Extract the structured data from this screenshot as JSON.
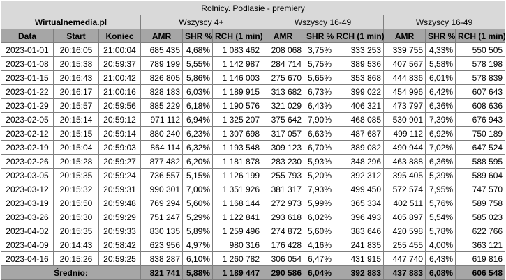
{
  "title": "Rolnicy. Podlasie - premiery",
  "source": "Wirtualnemedia.pl",
  "groups": [
    "Wszyscy 4+",
    "Wszyscy 16-49",
    "Wszyscy 16-49"
  ],
  "headers": [
    "Data",
    "Start",
    "Koniec",
    "AMR",
    "SHR %",
    "RCH (1 min)",
    "AMR",
    "SHR %",
    "RCH (1 min)",
    "AMR",
    "SHR %",
    "RCH (1 min)"
  ],
  "rows": [
    [
      "2023-01-01",
      "20:16:05",
      "21:00:04",
      "685 435",
      "4,68%",
      "1 083 462",
      "208 068",
      "3,75%",
      "333 253",
      "339 755",
      "4,33%",
      "550 505"
    ],
    [
      "2023-01-08",
      "20:15:38",
      "20:59:37",
      "789 199",
      "5,55%",
      "1 142 987",
      "284 714",
      "5,75%",
      "389 536",
      "407 567",
      "5,58%",
      "578 198"
    ],
    [
      "2023-01-15",
      "20:16:43",
      "21:00:42",
      "826 805",
      "5,86%",
      "1 146 003",
      "275 670",
      "5,65%",
      "353 868",
      "444 836",
      "6,01%",
      "578 839"
    ],
    [
      "2023-01-22",
      "20:16:17",
      "21:00:16",
      "828 183",
      "6,03%",
      "1 189 915",
      "313 682",
      "6,73%",
      "399 022",
      "454 996",
      "6,42%",
      "607 643"
    ],
    [
      "2023-01-29",
      "20:15:57",
      "20:59:56",
      "885 229",
      "6,18%",
      "1 190 576",
      "321 029",
      "6,43%",
      "406 321",
      "473 797",
      "6,36%",
      "608 636"
    ],
    [
      "2023-02-05",
      "20:15:14",
      "20:59:12",
      "971 112",
      "6,94%",
      "1 325 207",
      "375 642",
      "7,90%",
      "468 085",
      "530 901",
      "7,39%",
      "676 943"
    ],
    [
      "2023-02-12",
      "20:15:15",
      "20:59:14",
      "880 240",
      "6,23%",
      "1 307 698",
      "317 057",
      "6,63%",
      "487 687",
      "499 112",
      "6,92%",
      "750 189"
    ],
    [
      "2023-02-19",
      "20:15:04",
      "20:59:03",
      "864 114",
      "6,32%",
      "1 193 548",
      "309 123",
      "6,70%",
      "389 082",
      "490 944",
      "7,02%",
      "647 524"
    ],
    [
      "2023-02-26",
      "20:15:28",
      "20:59:27",
      "877 482",
      "6,20%",
      "1 181 878",
      "283 230",
      "5,93%",
      "348 296",
      "463 888",
      "6,36%",
      "588 595"
    ],
    [
      "2023-03-05",
      "20:15:35",
      "20:59:24",
      "736 557",
      "5,15%",
      "1 126 199",
      "255 793",
      "5,20%",
      "392 312",
      "395 405",
      "5,39%",
      "589 604"
    ],
    [
      "2023-03-12",
      "20:15:32",
      "20:59:31",
      "990 301",
      "7,00%",
      "1 351 926",
      "381 317",
      "7,93%",
      "499 450",
      "572 574",
      "7,95%",
      "747 570"
    ],
    [
      "2023-03-19",
      "20:15:50",
      "20:59:48",
      "769 294",
      "5,60%",
      "1 168 144",
      "272 973",
      "5,99%",
      "365 334",
      "402 511",
      "5,76%",
      "589 758"
    ],
    [
      "2023-03-26",
      "20:15:30",
      "20:59:29",
      "751 247",
      "5,29%",
      "1 122 841",
      "293 618",
      "6,02%",
      "396 493",
      "405 897",
      "5,54%",
      "585 023"
    ],
    [
      "2023-04-02",
      "20:15:35",
      "20:59:33",
      "830 135",
      "5,89%",
      "1 259 496",
      "274 872",
      "5,60%",
      "383 646",
      "420 598",
      "5,78%",
      "622 766"
    ],
    [
      "2023-04-09",
      "20:14:43",
      "20:58:42",
      "623 956",
      "4,97%",
      "980 316",
      "176 428",
      "4,16%",
      "241 835",
      "255 455",
      "4,00%",
      "363 121"
    ],
    [
      "2023-04-16",
      "20:15:26",
      "20:59:25",
      "838 287",
      "6,10%",
      "1 260 782",
      "306 054",
      "6,47%",
      "431 915",
      "447 740",
      "6,43%",
      "619 816"
    ]
  ],
  "average": {
    "label": "Średnio:",
    "values": [
      "821 741",
      "5,88%",
      "1 189 447",
      "290 586",
      "6,04%",
      "392 883",
      "437 883",
      "6,08%",
      "606 548"
    ]
  }
}
